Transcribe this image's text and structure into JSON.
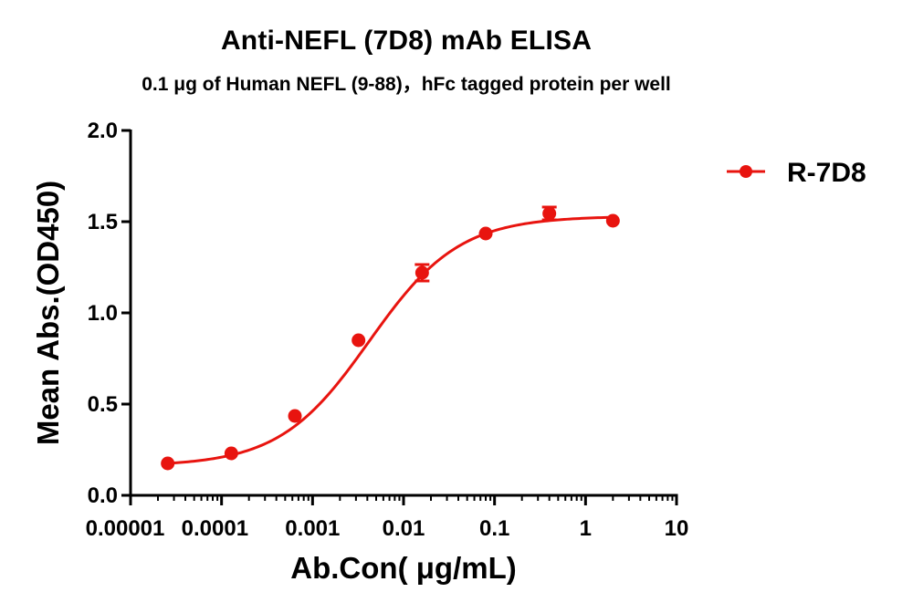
{
  "chart_data": {
    "type": "scatter",
    "title": "Anti-NEFL (7D8) mAb ELISA",
    "subtitle": "0.1 μg of Human NEFL (9-88)，hFc tagged protein per well",
    "xlabel": "Ab.Con( μg/mL)",
    "ylabel": "Mean Abs.(OD450)",
    "x_scale": "log10",
    "xlim": [
      1e-05,
      10
    ],
    "ylim": [
      0,
      2.0
    ],
    "x_ticks": [
      1e-05,
      0.0001,
      0.001,
      0.01,
      0.1,
      1,
      10
    ],
    "x_tick_labels": [
      "0.00001",
      "0.0001",
      "0.001",
      "0.01",
      "0.1",
      "1",
      "10"
    ],
    "y_ticks": [
      0,
      0.5,
      1.0,
      1.5,
      2.0
    ],
    "y_tick_labels": [
      "0.0",
      "0.5",
      "1.0",
      "1.5",
      "2.0"
    ],
    "grid": false,
    "legend_position": "top-right",
    "color": "#e8140f",
    "series": [
      {
        "name": "R-7D8",
        "x": [
          2.56e-05,
          0.000128,
          0.00064,
          0.0032,
          0.016,
          0.08,
          0.4,
          2.0
        ],
        "y": [
          0.175,
          0.23,
          0.435,
          0.85,
          1.22,
          1.435,
          1.545,
          1.505
        ],
        "y_err": [
          0.0,
          0.0,
          0.0,
          0.0,
          0.045,
          0.0,
          0.035,
          0.0
        ],
        "fit": {
          "model": "4PL",
          "bottom": 0.16,
          "top": 1.53,
          "ec50": 0.0042,
          "hill": 0.88
        }
      }
    ]
  }
}
